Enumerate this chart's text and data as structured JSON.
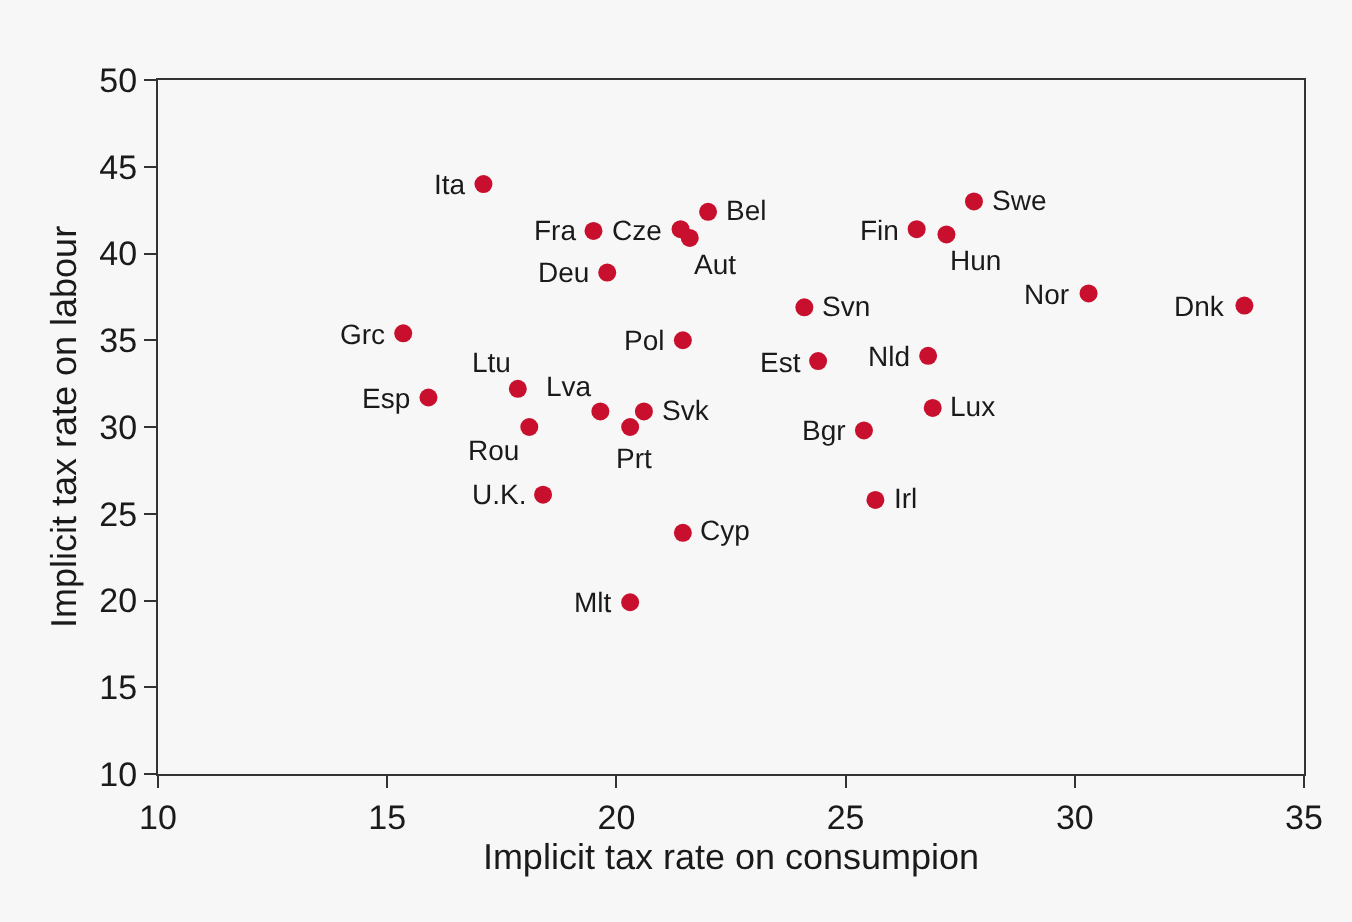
{
  "chart_data": {
    "type": "scatter",
    "xlabel": "Implicit tax rate on consumpion",
    "ylabel": "Implicit tax rate on labour",
    "xlim": [
      10,
      35
    ],
    "xticks": [
      10,
      15,
      20,
      25,
      30,
      35
    ],
    "ylim": [
      10,
      50
    ],
    "yticks": [
      10,
      15,
      20,
      25,
      30,
      35,
      40,
      45,
      50
    ],
    "grid": false,
    "marker": "circle",
    "series": [
      {
        "color": "#c8102e",
        "x": [
          17.1,
          19.5,
          21.4,
          21.6,
          22.0,
          19.8,
          15.35,
          21.45,
          24.1,
          24.4,
          17.85,
          15.9,
          19.65,
          20.6,
          20.3,
          18.1,
          18.4,
          21.45,
          20.3,
          25.4,
          25.65,
          26.9,
          26.8,
          26.55,
          27.2,
          27.8,
          30.3,
          33.7
        ],
        "values": [
          44.0,
          41.3,
          41.4,
          40.9,
          42.4,
          38.9,
          35.4,
          35.0,
          36.9,
          33.8,
          32.2,
          31.7,
          30.9,
          30.9,
          30.0,
          30.0,
          26.1,
          23.9,
          19.9,
          29.8,
          25.8,
          31.1,
          34.1,
          41.4,
          41.1,
          43.0,
          37.7,
          37.0
        ]
      }
    ],
    "annotations": [
      {
        "text": "Ita",
        "x": 17.1,
        "y": 44.0
      },
      {
        "text": "Fra",
        "x": 19.5,
        "y": 41.3
      },
      {
        "text": "Cze",
        "x": 21.4,
        "y": 41.4
      },
      {
        "text": "Aut",
        "x": 21.6,
        "y": 40.9
      },
      {
        "text": "Bel",
        "x": 22.0,
        "y": 42.4
      },
      {
        "text": "Deu",
        "x": 19.8,
        "y": 38.9
      },
      {
        "text": "Grc",
        "x": 15.35,
        "y": 35.4
      },
      {
        "text": "Pol",
        "x": 21.45,
        "y": 35.0
      },
      {
        "text": "Svn",
        "x": 24.1,
        "y": 36.9
      },
      {
        "text": "Est",
        "x": 24.4,
        "y": 33.8
      },
      {
        "text": "Ltu",
        "x": 17.85,
        "y": 32.2
      },
      {
        "text": "Esp",
        "x": 15.9,
        "y": 31.7
      },
      {
        "text": "Lva",
        "x": 19.65,
        "y": 30.9
      },
      {
        "text": "Svk",
        "x": 20.6,
        "y": 30.9
      },
      {
        "text": "Prt",
        "x": 20.3,
        "y": 30.0
      },
      {
        "text": "Rou",
        "x": 18.1,
        "y": 30.0
      },
      {
        "text": "U.K.",
        "x": 18.4,
        "y": 26.1
      },
      {
        "text": "Cyp",
        "x": 21.45,
        "y": 23.9
      },
      {
        "text": "Mlt",
        "x": 20.3,
        "y": 19.9
      },
      {
        "text": "Bgr",
        "x": 25.4,
        "y": 29.8
      },
      {
        "text": "Irl",
        "x": 25.65,
        "y": 25.8
      },
      {
        "text": "Lux",
        "x": 26.9,
        "y": 31.1
      },
      {
        "text": "Nld",
        "x": 26.8,
        "y": 34.1
      },
      {
        "text": "Fin",
        "x": 26.55,
        "y": 41.4
      },
      {
        "text": "Hun",
        "x": 27.2,
        "y": 41.1
      },
      {
        "text": "Swe",
        "x": 27.8,
        "y": 43.0
      },
      {
        "text": "Nor",
        "x": 30.3,
        "y": 37.7
      },
      {
        "text": "Dnk",
        "x": 33.7,
        "y": 37.0
      }
    ]
  }
}
